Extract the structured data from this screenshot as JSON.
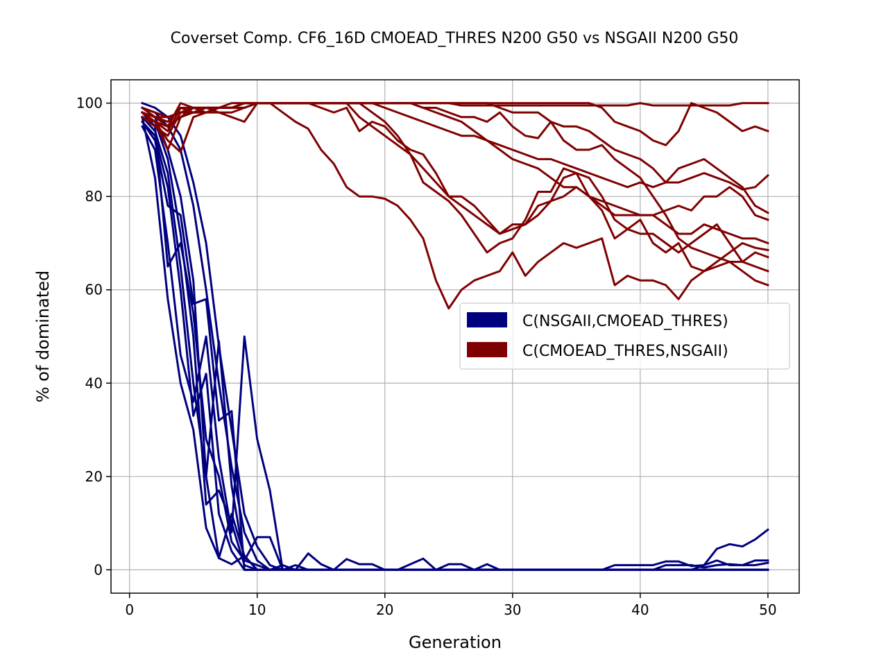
{
  "chart_data": {
    "type": "line",
    "title": "Coverset Comp. CF6_16D CMOEAD_THRES N200 G50 vs NSGAII N200 G50",
    "xlabel": "Generation",
    "ylabel": "% of dominated",
    "xlim": [
      -1.45,
      52.45
    ],
    "ylim": [
      -5,
      105
    ],
    "xticks": [
      0,
      10,
      20,
      30,
      40,
      50
    ],
    "yticks": [
      0,
      20,
      40,
      60,
      80,
      100
    ],
    "grid": true,
    "legend_position": "center-right",
    "legend": [
      {
        "label": "C(NSGAII,CMOEAD_THRES)",
        "color": "#00007f"
      },
      {
        "label": "C(CMOEAD_THRES,NSGAII)",
        "color": "#7f0000"
      }
    ],
    "x": [
      1,
      2,
      3,
      4,
      5,
      6,
      7,
      8,
      9,
      10,
      11,
      12,
      13,
      14,
      15,
      16,
      17,
      18,
      19,
      20,
      21,
      22,
      23,
      24,
      25,
      26,
      27,
      28,
      29,
      30,
      31,
      32,
      33,
      34,
      35,
      36,
      37,
      38,
      39,
      40,
      41,
      42,
      43,
      44,
      45,
      46,
      47,
      48,
      49,
      50
    ],
    "series": [
      {
        "group": "C(NSGAII,CMOEAD_THRES)",
        "color": "#00007f",
        "values": [
          100,
          99,
          97,
          93,
          83,
          70,
          48,
          30,
          12,
          5,
          1,
          0,
          0,
          0,
          0,
          0,
          0,
          0,
          0,
          0,
          0,
          0,
          0,
          0,
          0,
          0,
          0,
          0,
          0,
          0,
          0,
          0,
          0,
          0,
          0,
          0,
          0,
          0,
          0,
          0,
          0,
          0,
          0,
          0,
          0,
          0,
          0,
          0,
          0,
          0
        ]
      },
      {
        "group": "C(NSGAII,CMOEAD_THRES)",
        "color": "#00007f",
        "values": [
          99,
          98,
          95,
          90,
          78,
          60,
          40,
          22,
          8,
          2,
          0,
          0,
          0,
          0,
          0,
          0,
          0,
          0,
          0,
          0,
          0,
          0,
          0,
          0,
          0,
          0,
          0,
          0,
          0,
          0,
          0,
          0,
          0,
          0,
          0,
          0,
          0,
          0,
          0,
          0,
          0,
          0,
          0,
          0,
          0,
          0,
          0,
          0,
          0,
          0
        ]
      },
      {
        "group": "C(NSGAII,CMOEAD_THRES)",
        "color": "#00007f",
        "values": [
          98,
          95,
          65,
          70,
          55,
          28,
          20,
          6,
          2,
          1,
          0,
          0,
          0,
          0,
          0,
          0,
          0,
          0,
          0,
          0,
          0,
          0,
          0,
          0,
          0,
          0,
          0,
          0,
          0,
          0,
          0,
          0,
          0,
          0,
          0,
          0,
          0,
          0,
          0,
          0,
          0,
          0,
          0,
          0,
          0,
          0,
          0,
          0,
          0,
          0
        ]
      },
      {
        "group": "C(NSGAII,CMOEAD_THRES)",
        "color": "#00007f",
        "values": [
          97,
          84,
          58,
          40,
          30,
          9,
          2.5,
          1.2,
          3,
          0,
          0,
          0,
          0,
          0,
          0,
          0,
          0,
          0,
          0,
          0,
          0,
          0,
          0,
          0,
          0,
          0,
          0,
          0,
          0,
          0,
          0,
          0,
          0,
          0,
          0,
          0,
          0,
          0,
          0,
          0,
          0,
          0,
          0,
          0,
          0,
          0,
          0,
          0,
          0,
          0
        ]
      },
      {
        "group": "C(NSGAII,CMOEAD_THRES)",
        "color": "#00007f",
        "values": [
          96,
          92,
          78,
          76,
          57,
          58,
          32,
          34,
          0,
          0,
          0,
          0,
          0,
          0,
          0,
          0,
          0,
          0,
          0,
          0,
          0,
          0,
          0,
          0,
          0,
          0,
          0,
          0,
          0,
          0,
          0,
          0,
          0,
          0,
          0,
          0,
          0,
          0,
          0,
          0,
          0,
          0,
          0,
          0,
          0,
          0,
          0,
          0,
          0,
          0
        ]
      },
      {
        "group": "C(NSGAII,CMOEAD_THRES)",
        "color": "#00007f",
        "values": [
          95,
          90,
          70,
          46,
          36,
          50,
          24,
          8,
          50,
          28,
          17,
          0,
          1,
          0,
          0,
          0,
          0,
          0,
          0,
          0,
          0,
          0,
          0,
          0,
          0,
          0,
          0,
          0,
          0,
          0,
          0,
          0,
          0,
          0,
          0,
          0,
          0,
          0,
          0,
          0,
          0,
          0,
          0,
          0,
          0,
          0,
          0,
          0,
          0,
          0
        ]
      },
      {
        "group": "C(NSGAII,CMOEAD_THRES)",
        "color": "#00007f",
        "values": [
          99,
          97,
          90,
          80,
          62,
          20,
          49,
          18,
          2,
          7,
          7,
          0,
          0,
          0,
          0,
          0,
          0,
          0,
          0,
          0,
          0,
          0,
          0,
          0,
          0,
          0,
          0,
          0,
          0,
          0,
          0,
          0,
          0,
          0,
          0,
          0,
          0,
          0,
          0,
          0,
          0,
          0,
          0,
          0,
          0,
          0,
          0,
          0,
          0,
          0
        ]
      },
      {
        "group": "C(NSGAII,CMOEAD_THRES)",
        "color": "#00007f",
        "values": [
          98,
          96,
          88,
          72,
          50,
          14,
          17,
          10,
          1,
          0,
          0,
          0,
          0,
          3.5,
          1.2,
          0,
          2.3,
          1.2,
          1.2,
          0,
          0,
          1.2,
          2.4,
          0,
          1.2,
          1.2,
          0,
          1.2,
          0,
          0,
          0,
          0,
          0,
          0,
          0,
          0,
          0,
          0,
          0,
          0,
          0,
          0,
          0,
          0,
          1,
          4.5,
          5.5,
          5,
          6.5,
          8.6
        ]
      },
      {
        "group": "C(NSGAII,CMOEAD_THRES)",
        "color": "#00007f",
        "values": [
          97,
          94,
          85,
          65,
          40,
          20,
          2.5,
          12,
          3,
          0,
          0,
          1,
          0,
          0,
          0,
          0,
          0,
          0,
          0,
          0,
          0,
          0,
          0,
          0,
          0,
          0,
          0,
          0,
          0,
          0,
          0,
          0,
          0,
          0,
          0,
          0,
          0,
          1,
          1,
          1,
          1,
          1.8,
          1.8,
          0.8,
          1,
          2,
          1,
          1,
          2,
          2
        ]
      },
      {
        "group": "C(NSGAII,CMOEAD_THRES)",
        "color": "#00007f",
        "values": [
          96,
          93,
          82,
          60,
          33,
          42,
          12,
          4,
          0,
          0,
          0,
          0,
          0,
          0,
          0,
          0,
          0,
          0,
          0,
          0,
          0,
          0,
          0,
          0,
          0,
          0,
          0,
          0,
          0,
          0,
          0,
          0,
          0,
          0,
          0,
          0,
          0,
          0,
          0,
          0,
          0,
          1,
          1,
          1,
          0.5,
          1,
          1.2,
          1,
          1,
          1.5
        ]
      },
      {
        "group": "C(CMOEAD_THRES,NSGAII)",
        "color": "#7f0000",
        "values": [
          98,
          96,
          94,
          99,
          98,
          99,
          99,
          99,
          100,
          100,
          100,
          100,
          100,
          100,
          100,
          100,
          100,
          100,
          100,
          100,
          100,
          100,
          100,
          100,
          100,
          99.5,
          99.5,
          99.5,
          99.5,
          99.5,
          99.5,
          99.5,
          99.5,
          99.5,
          99.5,
          99.5,
          99.5,
          99.5,
          99.5,
          100,
          99.5,
          99.5,
          99.5,
          99.5,
          99.5,
          99.5,
          99.5,
          100,
          100,
          100
        ]
      },
      {
        "group": "C(CMOEAD_THRES,NSGAII)",
        "color": "#7f0000",
        "values": [
          97,
          95,
          93,
          98,
          98,
          98,
          99,
          99,
          100,
          100,
          100,
          100,
          100,
          100,
          100,
          100,
          100,
          100,
          100,
          100,
          100,
          100,
          100,
          100,
          100,
          100,
          100,
          100,
          100,
          100,
          100,
          100,
          100,
          100,
          100,
          100,
          99,
          96,
          95,
          94,
          92,
          91,
          94,
          100,
          99,
          98,
          96,
          94,
          95,
          94
        ]
      },
      {
        "group": "C(CMOEAD_THRES,NSGAII)",
        "color": "#7f0000",
        "values": [
          99,
          97,
          95,
          100,
          99,
          99,
          99,
          99,
          100,
          100,
          100,
          100,
          100,
          100,
          100,
          100,
          100,
          100,
          100,
          99,
          98,
          97,
          96,
          95,
          94,
          93,
          93,
          92,
          91,
          90,
          89,
          88,
          88,
          87,
          86,
          85,
          84,
          83,
          82,
          83,
          82,
          83,
          86,
          87,
          88,
          86,
          84,
          82,
          78,
          76.5
        ]
      },
      {
        "group": "C(CMOEAD_THRES,NSGAII)",
        "color": "#7f0000",
        "values": [
          98,
          96,
          92,
          89.5,
          97,
          98,
          99,
          99,
          100,
          100,
          100,
          98,
          96,
          94.5,
          90,
          87,
          82,
          80,
          80,
          79.5,
          78,
          75,
          71,
          62,
          56,
          60,
          62,
          63,
          64,
          68,
          63,
          66,
          68,
          70,
          69,
          70,
          71,
          61,
          63,
          62,
          62,
          61,
          58,
          62,
          64,
          66,
          68,
          70,
          69,
          68.5
        ]
      },
      {
        "group": "C(CMOEAD_THRES,NSGAII)",
        "color": "#7f0000",
        "values": [
          98,
          97,
          96,
          99,
          99,
          98,
          98,
          97,
          96,
          100,
          100,
          100,
          100,
          100,
          99,
          98,
          99,
          94,
          96,
          95,
          92,
          90,
          89,
          85,
          80,
          80,
          78,
          75,
          72,
          74,
          74,
          78,
          79,
          80,
          82,
          80,
          79,
          78,
          77,
          76,
          76,
          77,
          78,
          77,
          80,
          80,
          82,
          80,
          76,
          75
        ]
      },
      {
        "group": "C(CMOEAD_THRES,NSGAII)",
        "color": "#7f0000",
        "values": [
          97,
          96,
          90,
          97,
          99,
          99,
          99,
          99,
          100,
          100,
          100,
          100,
          100,
          100,
          100,
          100,
          100,
          97,
          95,
          93,
          91,
          89,
          86,
          83,
          80,
          78,
          76,
          74,
          72,
          73,
          74,
          76,
          79,
          84,
          85,
          84,
          80,
          75,
          73,
          72,
          72,
          70,
          68,
          70,
          72,
          74,
          70,
          66,
          68,
          67
        ]
      },
      {
        "group": "C(CMOEAD_THRES,NSGAII)",
        "color": "#7f0000",
        "values": [
          99,
          98,
          97,
          98,
          99,
          99,
          99,
          100,
          100,
          100,
          100,
          100,
          100,
          100,
          100,
          100,
          100,
          100,
          98,
          96,
          93,
          89,
          83,
          81,
          79,
          76,
          72,
          68,
          70,
          71,
          75,
          81,
          81,
          86,
          85,
          80,
          77,
          71,
          73,
          75,
          70,
          68,
          70,
          65,
          64,
          65,
          66,
          64,
          62,
          61
        ]
      },
      {
        "group": "C(CMOEAD_THRES,NSGAII)",
        "color": "#7f0000",
        "values": [
          98,
          97,
          97,
          98,
          98,
          99,
          99,
          99,
          99,
          100,
          100,
          100,
          100,
          100,
          100,
          100,
          100,
          100,
          100,
          100,
          100,
          100,
          100,
          100,
          100,
          100,
          100,
          100,
          99,
          98,
          98,
          98,
          96,
          92,
          90,
          90,
          91,
          88,
          86,
          84,
          80,
          76,
          71,
          69,
          68,
          67,
          66,
          66,
          65,
          64
        ]
      },
      {
        "group": "C(CMOEAD_THRES,NSGAII)",
        "color": "#7f0000",
        "values": [
          99,
          98,
          97,
          98,
          99,
          99,
          98,
          98,
          99,
          100,
          100,
          100,
          100,
          100,
          100,
          100,
          100,
          100,
          100,
          100,
          100,
          100,
          99,
          98,
          97,
          96,
          94,
          92,
          90,
          88,
          87,
          86,
          84,
          82,
          82,
          80,
          78,
          76,
          76,
          76,
          76,
          74,
          72,
          72,
          74,
          73,
          72,
          71,
          71,
          70
        ]
      },
      {
        "group": "C(CMOEAD_THRES,NSGAII)",
        "color": "#7f0000",
        "values": [
          97,
          96,
          95,
          97,
          98,
          98,
          99,
          99,
          99,
          100,
          100,
          100,
          100,
          100,
          100,
          100,
          100,
          100,
          100,
          100,
          100,
          100,
          99,
          99,
          98,
          97,
          97,
          96,
          98,
          95,
          93,
          92.5,
          96,
          95,
          95,
          94,
          92,
          90,
          89,
          88,
          86,
          83,
          83,
          84,
          85,
          84,
          83,
          81.5,
          82,
          84.5
        ]
      }
    ]
  }
}
